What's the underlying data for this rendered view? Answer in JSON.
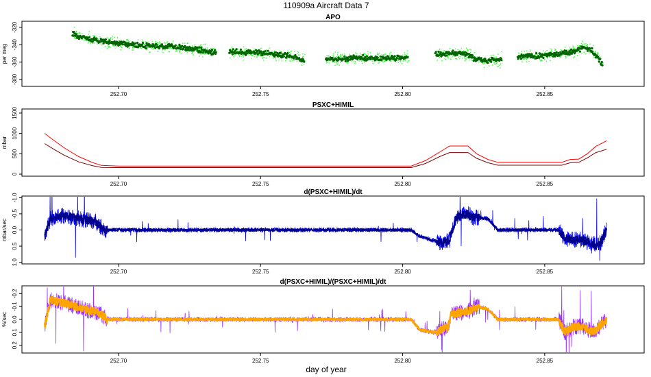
{
  "figure": {
    "title": "110909a   Aircraft Data 7",
    "xlabel": "day of year"
  },
  "chart_data": [
    {
      "type": "scatter",
      "title": "APO",
      "ylabel": "per meg",
      "xlim": [
        252.666,
        252.885
      ],
      "ylim": [
        -388,
        -313
      ],
      "y_reversed": false,
      "xticks": [
        "252.70",
        "252.75",
        "252.80",
        "252.85"
      ],
      "xtick_values": [
        252.7,
        252.75,
        252.8,
        252.85
      ],
      "yticks": [
        "-320",
        "-340",
        "-360",
        "-380"
      ],
      "ytick_values": [
        -320,
        -340,
        -360,
        -380
      ],
      "colors": {
        "raw": "#33ff33",
        "smooth": "#006400"
      },
      "segments": [
        {
          "x": [
            252.6838,
            252.69,
            252.7,
            252.71,
            252.718,
            252.724,
            252.73,
            252.7345
          ],
          "y": [
            -328,
            -334,
            -339,
            -341,
            -342,
            -344,
            -347,
            -349
          ]
        },
        {
          "x": [
            252.739,
            252.745,
            252.752,
            252.758,
            252.763,
            252.7655
          ],
          "y": [
            -348,
            -349,
            -350,
            -352,
            -355,
            -359
          ]
        },
        {
          "x": [
            252.773,
            252.78,
            252.787,
            252.793,
            252.8,
            252.802
          ],
          "y": [
            -357,
            -356,
            -355,
            -356,
            -355,
            -354
          ]
        },
        {
          "x": [
            252.8115,
            252.818,
            252.823,
            252.826,
            252.83,
            252.835
          ],
          "y": [
            -351,
            -350,
            -352,
            -357,
            -359,
            -357
          ]
        },
        {
          "x": [
            252.8405,
            252.847,
            252.853,
            252.86,
            252.864,
            252.867,
            252.8705
          ],
          "y": [
            -354,
            -353,
            -351,
            -348,
            -343,
            -348,
            -363
          ]
        }
      ]
    },
    {
      "type": "line",
      "title": "PSXC+HIMIL",
      "ylabel": "mbar",
      "xlim": [
        252.666,
        252.885
      ],
      "ylim": [
        -50,
        1600
      ],
      "y_reversed": false,
      "xticks": [
        "252.70",
        "252.75",
        "252.80",
        "252.85"
      ],
      "xtick_values": [
        252.7,
        252.75,
        252.8,
        252.85
      ],
      "yticks": [
        "0",
        "500",
        "1000",
        "1500"
      ],
      "ytick_values": [
        0,
        500,
        1000,
        1500
      ],
      "series": [
        {
          "color": "#ff0000",
          "x": [
            252.674,
            252.677,
            252.681,
            252.686,
            252.691,
            252.694,
            252.7,
            252.75,
            252.803,
            252.808,
            252.813,
            252.8165,
            252.823,
            252.826,
            252.83,
            252.8335,
            252.856,
            252.859,
            252.862,
            252.865,
            252.868,
            252.8718
          ],
          "y": [
            1000,
            840,
            640,
            430,
            280,
            215,
            200,
            200,
            200,
            330,
            540,
            690,
            690,
            500,
            360,
            290,
            290,
            360,
            370,
            500,
            680,
            820
          ]
        },
        {
          "color": "#7a0000",
          "x": [
            252.674,
            252.677,
            252.681,
            252.686,
            252.691,
            252.694,
            252.7,
            252.75,
            252.803,
            252.808,
            252.813,
            252.8165,
            252.823,
            252.826,
            252.83,
            252.8335,
            252.856,
            252.859,
            252.862,
            252.865,
            252.868,
            252.8718
          ],
          "y": [
            750,
            620,
            460,
            300,
            205,
            165,
            160,
            160,
            160,
            260,
            430,
            530,
            530,
            390,
            280,
            220,
            220,
            280,
            290,
            400,
            530,
            610
          ]
        }
      ]
    },
    {
      "type": "line",
      "title": "d(PSXC+HIMIL)/dt",
      "ylabel": "mbar/sec",
      "xlim": [
        252.666,
        252.885
      ],
      "ylim": [
        1.05,
        -1.05
      ],
      "y_reversed": true,
      "xticks": [
        "252.70",
        "252.75",
        "252.80",
        "252.85"
      ],
      "xtick_values": [
        252.7,
        252.75,
        252.8,
        252.85
      ],
      "yticks": [
        "-1.0",
        "-0.5",
        "0.0",
        "0.5",
        "1.0"
      ],
      "ytick_values": [
        -1.0,
        -0.5,
        0.0,
        0.5,
        1.0
      ],
      "colors": {
        "raw": "#0000ff",
        "smooth": "#00008b"
      },
      "x": [
        252.674,
        252.676,
        252.68,
        252.686,
        252.692,
        252.695,
        252.7,
        252.72,
        252.75,
        252.775,
        252.795,
        252.803,
        252.806,
        252.81,
        252.814,
        252.8165,
        252.819,
        252.823,
        252.8245,
        252.83,
        252.8335,
        252.845,
        252.855,
        252.857,
        252.86,
        252.863,
        252.866,
        252.869,
        252.8718
      ],
      "y": [
        0.2,
        -0.35,
        -0.45,
        -0.35,
        -0.25,
        0.0,
        0.0,
        0.0,
        0.0,
        0.0,
        0.0,
        0.0,
        0.2,
        0.3,
        0.4,
        0.3,
        -0.4,
        -0.5,
        -0.4,
        -0.35,
        0.0,
        0.0,
        0.0,
        0.25,
        0.3,
        0.3,
        0.4,
        0.5,
        0.0
      ]
    },
    {
      "type": "line",
      "title": "d(PSXC+HIMIL)/(PSXC+HIMIL)/dt",
      "ylabel": "%/sec",
      "xlim": [
        252.666,
        252.885
      ],
      "ylim": [
        0.26,
        -0.26
      ],
      "y_reversed": true,
      "xticks": [
        "252.70",
        "252.75",
        "252.80",
        "252.85"
      ],
      "xtick_values": [
        252.7,
        252.75,
        252.8,
        252.85
      ],
      "yticks": [
        "-0.2",
        "-0.1",
        "0.0",
        "0.1",
        "0.2"
      ],
      "ytick_values": [
        -0.2,
        -0.1,
        0.0,
        0.1,
        0.2
      ],
      "colors": {
        "raw": "#9b30ff",
        "smooth": "#ffa500"
      },
      "x": [
        252.674,
        252.676,
        252.682,
        252.688,
        252.693,
        252.696,
        252.72,
        252.75,
        252.78,
        252.803,
        252.806,
        252.811,
        252.816,
        252.817,
        252.824,
        252.826,
        252.83,
        252.8335,
        252.845,
        252.855,
        252.857,
        252.86,
        252.863,
        252.867,
        252.8718
      ],
      "y": [
        0.05,
        -0.15,
        -0.12,
        -0.08,
        -0.05,
        0.0,
        0.0,
        0.0,
        0.0,
        0.0,
        0.08,
        0.1,
        0.06,
        -0.04,
        -0.07,
        -0.1,
        -0.08,
        0.0,
        0.0,
        0.0,
        0.1,
        0.06,
        0.05,
        0.1,
        0.0
      ]
    }
  ]
}
